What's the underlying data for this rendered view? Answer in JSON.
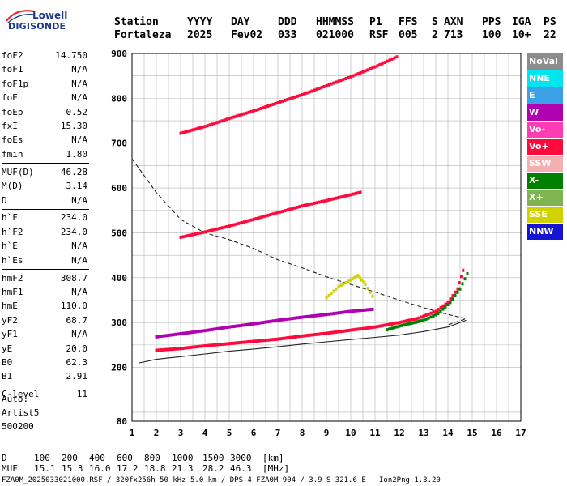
{
  "logo": {
    "line1": "Lowell",
    "line2": "DIGISONDE"
  },
  "header": {
    "labels": [
      "Station",
      "YYYY",
      "DAY",
      "DDD",
      "HHMMSS",
      "P1",
      "FFS",
      "S",
      "AXN",
      "PPS",
      "IGA",
      "PS"
    ],
    "values": [
      "Fortaleza",
      "2025",
      "Fev02",
      "033",
      "021000",
      "RSF",
      "005",
      "2",
      "713",
      "100",
      "10+",
      "22"
    ]
  },
  "params": [
    {
      "group": 1,
      "name": "foF2",
      "value": "14.750"
    },
    {
      "group": 1,
      "name": "foF1",
      "value": "N/A"
    },
    {
      "group": 1,
      "name": "foF1p",
      "value": "N/A"
    },
    {
      "group": 1,
      "name": "foE",
      "value": "N/A"
    },
    {
      "group": 1,
      "name": "foEp",
      "value": "0.52"
    },
    {
      "group": 1,
      "name": "fxI",
      "value": "15.30"
    },
    {
      "group": 1,
      "name": "foEs",
      "value": "N/A"
    },
    {
      "group": 1,
      "name": "fmin",
      "value": "1.80"
    },
    {
      "group": 2,
      "name": "MUF(D)",
      "value": "46.28"
    },
    {
      "group": 2,
      "name": "M(D)",
      "value": "3.14"
    },
    {
      "group": 2,
      "name": "D",
      "value": "N/A"
    },
    {
      "group": 3,
      "name": "h`F",
      "value": "234.0"
    },
    {
      "group": 3,
      "name": "h`F2",
      "value": "234.0"
    },
    {
      "group": 3,
      "name": "h`E",
      "value": "N/A"
    },
    {
      "group": 3,
      "name": "h`Es",
      "value": "N/A"
    },
    {
      "group": 4,
      "name": "hmF2",
      "value": "308.7"
    },
    {
      "group": 4,
      "name": "hmF1",
      "value": "N/A"
    },
    {
      "group": 4,
      "name": "hmE",
      "value": "110.0"
    },
    {
      "group": 4,
      "name": "yF2",
      "value": "68.7"
    },
    {
      "group": 4,
      "name": "yF1",
      "value": "N/A"
    },
    {
      "group": 4,
      "name": "yE",
      "value": "20.0"
    },
    {
      "group": 4,
      "name": "B0",
      "value": "62.3"
    },
    {
      "group": 4,
      "name": "B1",
      "value": "2.91"
    },
    {
      "group": 5,
      "name": "C-level",
      "value": "11"
    }
  ],
  "auto": {
    "line1": "Auto:",
    "line2": "Artist5",
    "line3": "500200"
  },
  "legend": [
    {
      "label": "NoVal",
      "color": "#8c8c8c"
    },
    {
      "label": "NNE",
      "color": "#00e5ee"
    },
    {
      "label": "E",
      "color": "#3aa0e8"
    },
    {
      "label": "W",
      "color": "#b000b0"
    },
    {
      "label": "Vo-",
      "color": "#ff3cb4"
    },
    {
      "label": "Vo+",
      "color": "#ff0a3c"
    },
    {
      "label": "SSW",
      "color": "#f4b0b0"
    },
    {
      "label": "X-",
      "color": "#008000"
    },
    {
      "label": "X+",
      "color": "#80b450"
    },
    {
      "label": "SSE",
      "color": "#d2d200"
    },
    {
      "label": "NNW",
      "color": "#1414d2"
    }
  ],
  "bottom": {
    "d_label": "D",
    "d_values": [
      "100",
      "200",
      "400",
      "600",
      "800",
      "1000",
      "1500",
      "3000"
    ],
    "d_unit": "[km]",
    "muf_label": "MUF",
    "muf_values": [
      "15.1",
      "15.3",
      "16.0",
      "17.2",
      "18.8",
      "21.3",
      "28.2",
      "46.3"
    ],
    "muf_unit": "[MHz]"
  },
  "footer": "FZA0M_2025033021000.RSF / 320fx256h 50 kHz 5.0 km / DPS-4 FZA0M 904 / 3.9 S 321.6 E   Ion2Png 1.3.20",
  "chart_data": {
    "type": "scatter",
    "xlim": [
      1,
      17
    ],
    "ylim": [
      80,
      900
    ],
    "xticks": [
      1,
      2,
      3,
      4,
      5,
      6,
      7,
      8,
      9,
      10,
      11,
      12,
      13,
      14,
      15,
      16,
      17
    ],
    "yticks": [
      80,
      200,
      300,
      400,
      500,
      600,
      700,
      800,
      900
    ],
    "grid": true,
    "traces": [
      {
        "name": "F2 O-trace",
        "color": "#ff0a3c",
        "points": [
          [
            2.0,
            238
          ],
          [
            3,
            242
          ],
          [
            4,
            248
          ],
          [
            5,
            253
          ],
          [
            6,
            258
          ],
          [
            7,
            263
          ],
          [
            8,
            270
          ],
          [
            9,
            276
          ],
          [
            10,
            283
          ],
          [
            11,
            290
          ],
          [
            12,
            300
          ],
          [
            12.8,
            310
          ],
          [
            13.5,
            325
          ],
          [
            14.0,
            345
          ],
          [
            14.4,
            375
          ],
          [
            14.7,
            430
          ]
        ]
      },
      {
        "name": "F2 X-trace",
        "color": "#008000",
        "points": [
          [
            11.5,
            284
          ],
          [
            12,
            292
          ],
          [
            13,
            305
          ],
          [
            13.6,
            320
          ],
          [
            14.1,
            345
          ],
          [
            14.5,
            375
          ],
          [
            14.9,
            420
          ]
        ]
      },
      {
        "name": "spread F",
        "color": "#b000b0",
        "points": [
          [
            2,
            268
          ],
          [
            3,
            275
          ],
          [
            4,
            282
          ],
          [
            5,
            290
          ],
          [
            6,
            297
          ],
          [
            7,
            305
          ],
          [
            8,
            312
          ],
          [
            9,
            318
          ],
          [
            10,
            325
          ],
          [
            11,
            330
          ]
        ]
      },
      {
        "name": "2nd hop",
        "color": "#ff0a3c",
        "points": [
          [
            3,
            490
          ],
          [
            4,
            502
          ],
          [
            5,
            515
          ],
          [
            6,
            530
          ],
          [
            7,
            545
          ],
          [
            8,
            560
          ],
          [
            9,
            572
          ],
          [
            10,
            585
          ],
          [
            10.5,
            592
          ]
        ]
      },
      {
        "name": "3rd hop",
        "color": "#ff0a3c",
        "points": [
          [
            3,
            722
          ],
          [
            4,
            737
          ],
          [
            5,
            755
          ],
          [
            6,
            772
          ],
          [
            7,
            790
          ],
          [
            8,
            808
          ],
          [
            9,
            828
          ],
          [
            10,
            848
          ],
          [
            11,
            870
          ],
          [
            12,
            895
          ]
        ]
      },
      {
        "name": "SSE echo",
        "color": "#d2d200",
        "points": [
          [
            9,
            355
          ],
          [
            9.5,
            380
          ],
          [
            10,
            395
          ],
          [
            10.3,
            405
          ],
          [
            10.6,
            385
          ],
          [
            11,
            350
          ]
        ]
      }
    ],
    "profile_lines": [
      {
        "name": "dashed profile",
        "style": "dashed",
        "points": [
          [
            1.0,
            665
          ],
          [
            2,
            590
          ],
          [
            3,
            530
          ],
          [
            4,
            500
          ],
          [
            5,
            485
          ],
          [
            6,
            465
          ],
          [
            7,
            440
          ],
          [
            8,
            422
          ],
          [
            9,
            402
          ],
          [
            10,
            385
          ],
          [
            11,
            368
          ],
          [
            12,
            350
          ],
          [
            13,
            333
          ],
          [
            14,
            318
          ],
          [
            14.75,
            308.7
          ],
          [
            14,
            295
          ]
        ]
      },
      {
        "name": "solid profile",
        "style": "solid",
        "points": [
          [
            1.3,
            210
          ],
          [
            2,
            218
          ],
          [
            3,
            224
          ],
          [
            4,
            230
          ],
          [
            5,
            236
          ],
          [
            6,
            241
          ],
          [
            7,
            246
          ],
          [
            8,
            252
          ],
          [
            9,
            257
          ],
          [
            10,
            262
          ],
          [
            11,
            267
          ],
          [
            12,
            272
          ],
          [
            13,
            280
          ],
          [
            14,
            290
          ],
          [
            14.75,
            305
          ]
        ]
      }
    ]
  }
}
